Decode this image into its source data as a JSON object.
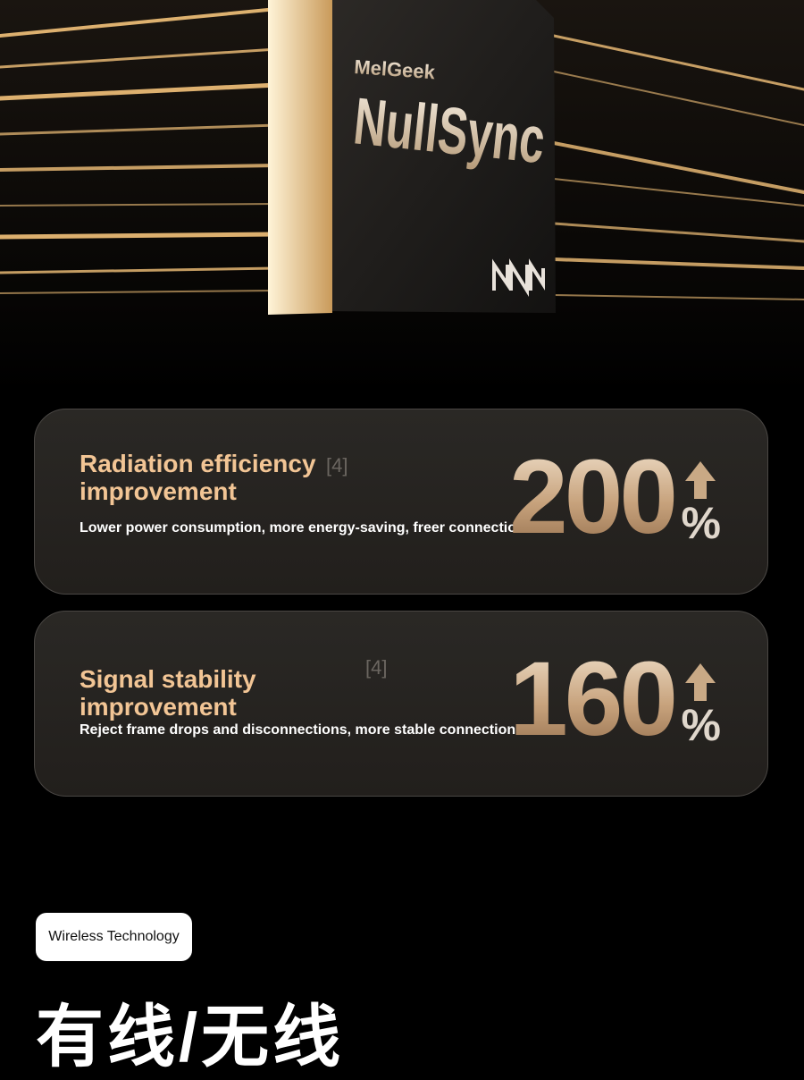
{
  "hero": {
    "brand": "MelGeek",
    "product": "NullSync"
  },
  "cards": [
    {
      "title": "Radiation efficiency improvement",
      "ref": "[4]",
      "description": "Lower power consumption, more energy-saving, freer connection",
      "number": 200,
      "unit": "%"
    },
    {
      "title": "Signal stability improvement",
      "ref": "[4]",
      "description": "Reject frame drops and disconnections, more stable connection",
      "number": 160,
      "unit": "%"
    }
  ],
  "section": {
    "badge": "Wireless Technology",
    "heading": "有线/无线"
  }
}
